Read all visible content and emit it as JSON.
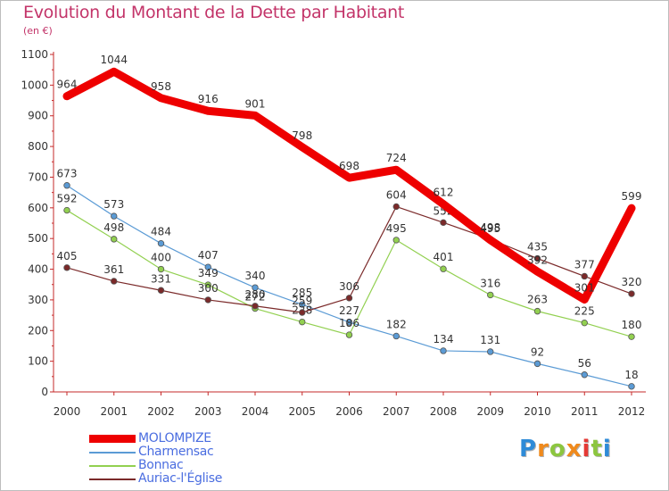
{
  "title": "Evolution du Montant de la Dette par Habitant",
  "unit": "(en €)",
  "chart_data": {
    "type": "line",
    "x": [
      "2000",
      "2001",
      "2002",
      "2003",
      "2004",
      "2005",
      "2006",
      "2007",
      "2008",
      "2009",
      "2010",
      "2011",
      "2012"
    ],
    "ylim": [
      0,
      1100
    ],
    "yticks": [
      0,
      100,
      200,
      300,
      400,
      500,
      600,
      700,
      800,
      900,
      1000,
      1100
    ],
    "grid": false,
    "legend": "bottom-left",
    "series": [
      {
        "name": "MOLOMPIZE",
        "color": "#ee0000",
        "values": [
          964,
          1044,
          958,
          916,
          901,
          798,
          698,
          724,
          612,
          495,
          392,
          301,
          599
        ]
      },
      {
        "name": "Charmensac",
        "color": "#5b9bd5",
        "values": [
          673,
          573,
          484,
          407,
          340,
          285,
          227,
          182,
          134,
          131,
          92,
          56,
          18
        ]
      },
      {
        "name": "Bonnac",
        "color": "#92d050",
        "values": [
          592,
          498,
          400,
          349,
          272,
          228,
          186,
          495,
          401,
          316,
          263,
          225,
          180
        ]
      },
      {
        "name": "Auriac-l'Église",
        "color": "#7b2a2a",
        "values": [
          405,
          361,
          331,
          300,
          280,
          259,
          306,
          604,
          552,
          498,
          435,
          377,
          320
        ]
      }
    ]
  },
  "logo": {
    "letters": [
      "P",
      "r",
      "o",
      "x",
      "i",
      "t",
      "i"
    ],
    "colors": [
      "#2e8bd8",
      "#f08a1c",
      "#8cc63f",
      "#f08a1c",
      "#e53935",
      "#8cc63f",
      "#2e8bd8"
    ]
  }
}
